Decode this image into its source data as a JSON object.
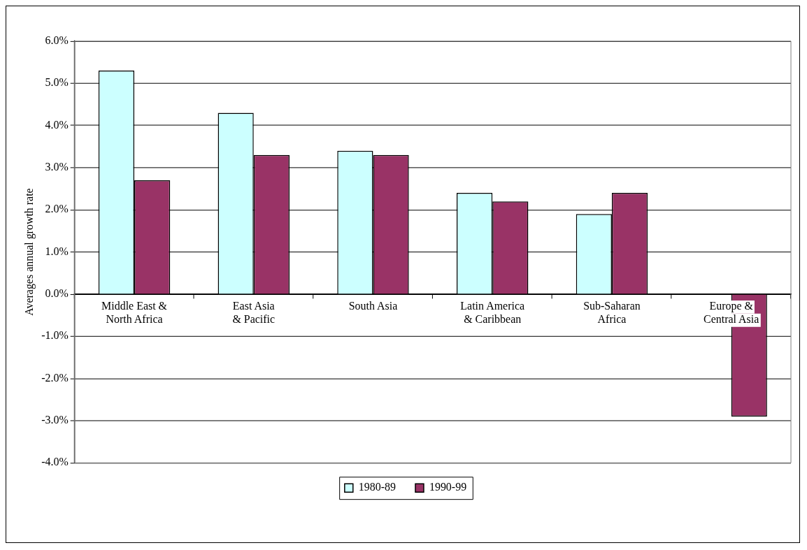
{
  "chart_data": {
    "type": "bar",
    "ylabel": "Averages annual growth rate",
    "categories": [
      "Middle East & North Africa",
      "East Asia & Pacific",
      "South Asia",
      "Latin America & Caribbean",
      "Sub-Saharan Africa",
      "Europe & Central Asia"
    ],
    "series": [
      {
        "name": "1980-89",
        "color": "#ccffff",
        "values": [
          5.3,
          4.3,
          3.4,
          2.4,
          1.9,
          null
        ]
      },
      {
        "name": "1990-99",
        "color": "#993366",
        "values": [
          2.7,
          3.3,
          3.3,
          2.2,
          2.4,
          -2.9
        ]
      }
    ],
    "ylim": [
      -4,
      6
    ],
    "yticks": [
      {
        "value": -4,
        "label": "-4.0%"
      },
      {
        "value": -3,
        "label": "-3.0%"
      },
      {
        "value": -2,
        "label": "-2.0%"
      },
      {
        "value": -1,
        "label": "-1.0%"
      },
      {
        "value": 0,
        "label": "0.0%"
      },
      {
        "value": 1,
        "label": "1.0%"
      },
      {
        "value": 2,
        "label": "2.0%"
      },
      {
        "value": 3,
        "label": "3.0%"
      },
      {
        "value": 4,
        "label": "4.0%"
      },
      {
        "value": 5,
        "label": "5.0%"
      },
      {
        "value": 6,
        "label": "6.0%"
      }
    ],
    "grid": "y",
    "legend": "bottom"
  }
}
